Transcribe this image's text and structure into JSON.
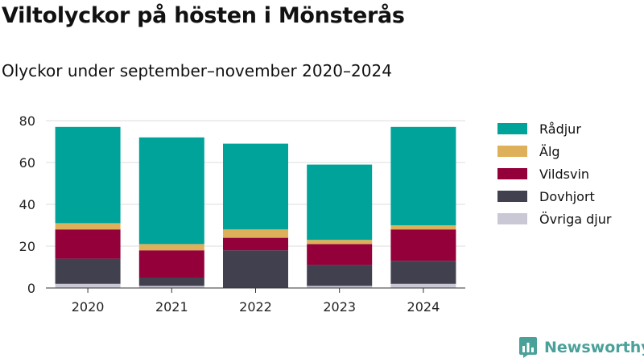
{
  "title": "Viltolyckor på hösten i Mönsterås",
  "subtitle": "Olyckor under september–november 2020–2024",
  "brand": {
    "name": "Newsworthy"
  },
  "chart_data": {
    "type": "bar",
    "stacked": true,
    "categories": [
      "2020",
      "2021",
      "2022",
      "2023",
      "2024"
    ],
    "series": [
      {
        "name": "Övriga djur",
        "color": "#cbc8d6",
        "values": [
          2,
          1,
          0,
          1,
          2
        ]
      },
      {
        "name": "Dovhjort",
        "color": "#41404f",
        "values": [
          12,
          4,
          18,
          10,
          11
        ]
      },
      {
        "name": "Vildsvin",
        "color": "#93003a",
        "values": [
          14,
          13,
          6,
          10,
          15
        ]
      },
      {
        "name": "Älg",
        "color": "#deb059",
        "values": [
          3,
          3,
          4,
          2,
          2
        ]
      },
      {
        "name": "Rådjur",
        "color": "#00a39a",
        "values": [
          46,
          51,
          41,
          36,
          47
        ]
      }
    ],
    "legend_order": [
      "Rådjur",
      "Älg",
      "Vildsvin",
      "Dovhjort",
      "Övriga djur"
    ],
    "yticks": [
      0,
      20,
      40,
      60,
      80
    ],
    "ylim": [
      0,
      80
    ],
    "grid": true,
    "legend_position": "right",
    "xlabel": "",
    "ylabel": ""
  }
}
